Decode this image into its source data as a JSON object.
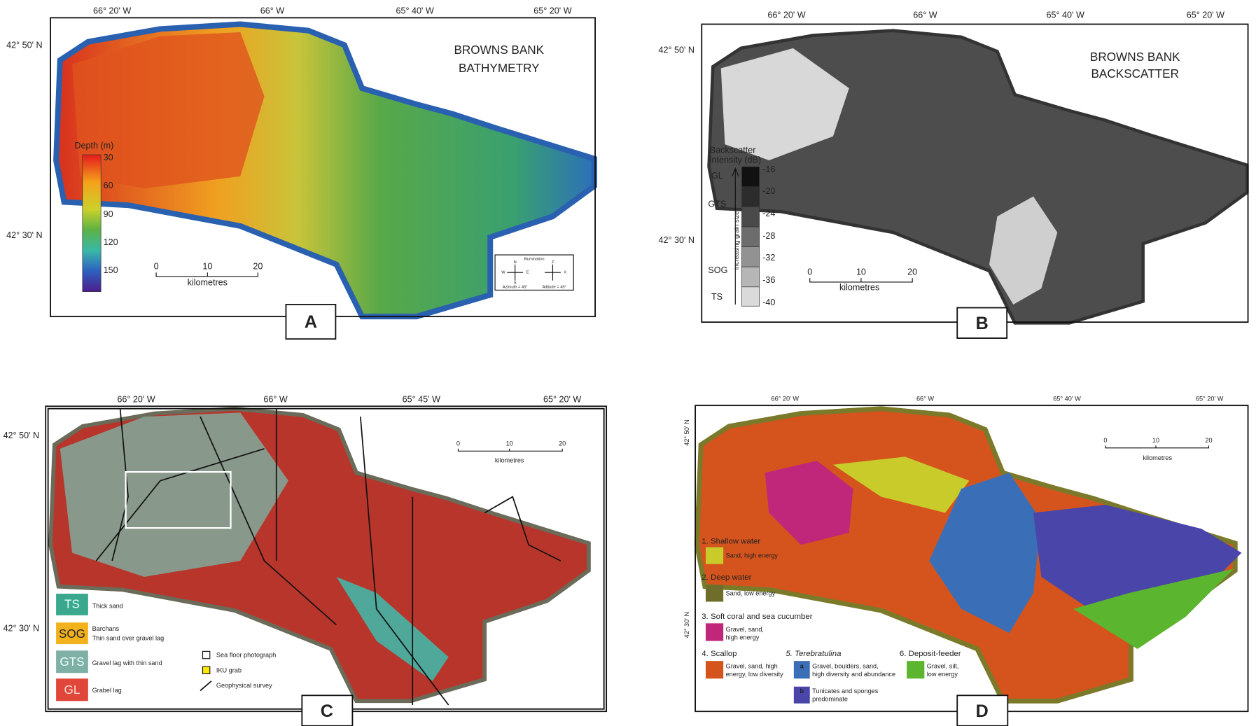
{
  "panels": [
    {
      "label": "A",
      "title": [
        "BROWNS BANK",
        "BATHYMETRY"
      ],
      "longitudes": [
        "66° 20' W",
        "66° W",
        "65° 40' W",
        "65° 20' W"
      ],
      "latitudes": [
        "42° 50' N",
        "42° 30' N"
      ],
      "legend": {
        "title": "Depth (m)",
        "ticks": [
          30,
          60,
          90,
          120,
          150
        ]
      },
      "scale": {
        "ticks": [
          0,
          10,
          20
        ],
        "unit": "kilometres"
      },
      "illumination": {
        "title": "Illumination",
        "azimuth": [
          "N",
          "E",
          "S",
          "W"
        ],
        "azimuth_label": "Azimuth = 45°",
        "altitude": [
          "Z",
          "X"
        ],
        "altitude_label": "Altitude = 45°"
      }
    },
    {
      "label": "B",
      "title": [
        "BROWNS BANK",
        "BACKSCATTER"
      ],
      "longitudes": [
        "66° 20' W",
        "66° W",
        "65° 40' W",
        "65° 20' W"
      ],
      "latitudes": [
        "42° 50' N",
        "42° 30' N"
      ],
      "legend": {
        "title": [
          "Backscatter",
          "intensity  (dB)"
        ],
        "ticks": [
          -16,
          -20,
          -24,
          -28,
          -32,
          -36,
          -40
        ],
        "classes": [
          "GL",
          "GTS",
          "SOG",
          "TS"
        ],
        "axis_label": "increasing grain size"
      },
      "scale": {
        "ticks": [
          0,
          10,
          20
        ],
        "unit": "kilometres"
      }
    },
    {
      "label": "C",
      "longitudes": [
        "66° 20' W",
        "66° W",
        "65° 45' W",
        "65° 20' W"
      ],
      "latitudes": [
        "42° 50' N",
        "42° 30' N"
      ],
      "scale": {
        "ticks": [
          0,
          10,
          20
        ],
        "unit": "kilometres"
      },
      "legend": [
        {
          "code": "TS",
          "text": [
            "Thick sand"
          ]
        },
        {
          "code": "SOG",
          "text": [
            "Barchans",
            "Thin sand over gravel lag"
          ]
        },
        {
          "code": "GTS",
          "text": [
            "Gravel lag with thin sand"
          ]
        },
        {
          "code": "GL",
          "text": [
            "Grabel lag"
          ]
        }
      ],
      "symbols": [
        "Sea floor photograph",
        "IKU grab",
        "Geophysical survey"
      ]
    },
    {
      "label": "D",
      "longitudes": [
        "66° 20' W",
        "66° W",
        "65° 40' W",
        "65° 20' W"
      ],
      "latitudes": [
        "42° 50' N",
        "42° 30' N"
      ],
      "scale": {
        "ticks": [
          0,
          10,
          20
        ],
        "unit": "kilometres"
      },
      "legend": [
        {
          "name": "1. Shallow water",
          "items": [
            {
              "text": [
                "Sand, high energy"
              ]
            }
          ]
        },
        {
          "name": "2. Deep water",
          "items": [
            {
              "text": [
                "Sand, low energy"
              ]
            }
          ]
        },
        {
          "name": "3. Soft coral and sea cucumber",
          "items": [
            {
              "text": [
                "Gravel, sand,",
                "high energy"
              ]
            }
          ]
        },
        {
          "name": "4. Scallop",
          "items": [
            {
              "text": [
                "Gravel, sand, high",
                "energy, low diversity"
              ]
            }
          ]
        },
        {
          "name": "5. Terebratulina",
          "items": [
            {
              "key": "a",
              "text": [
                "Gravel, boulders, sand,",
                "high diversity and abundance"
              ]
            },
            {
              "key": "b",
              "text": [
                "Tunicates and sponges",
                "predominate"
              ]
            }
          ]
        },
        {
          "name": "6. Deposit-feeder",
          "items": [
            {
              "text": [
                "Gravel, silt,",
                "low energy"
              ]
            }
          ]
        }
      ]
    }
  ]
}
